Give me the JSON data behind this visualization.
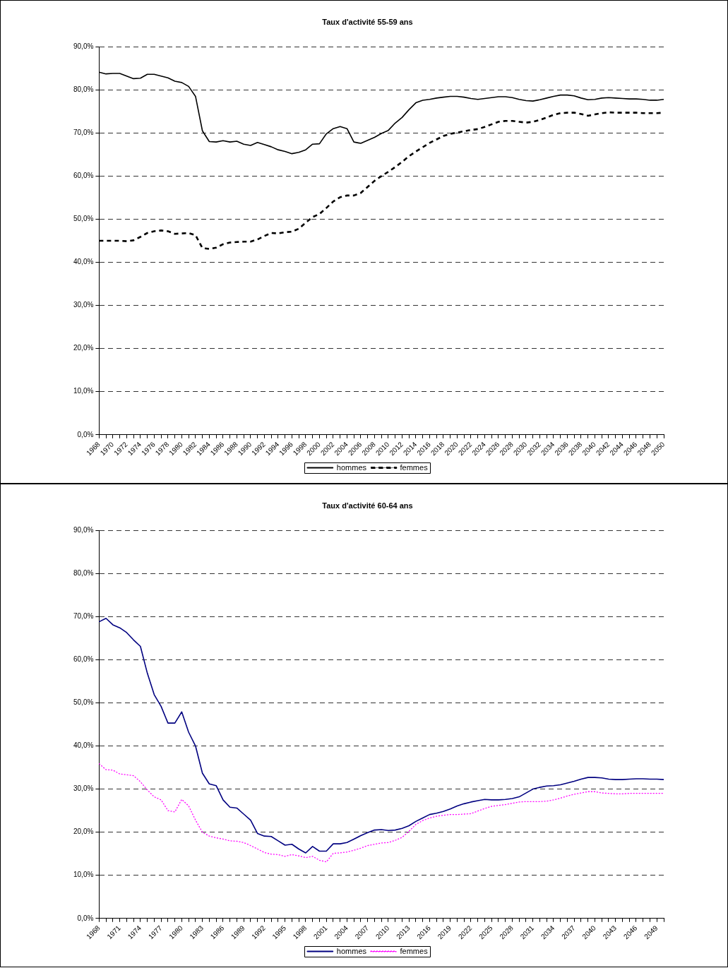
{
  "chart_data": [
    {
      "type": "line",
      "title": "Taux d'activité 55-59 ans",
      "categories": [
        "1968",
        null,
        "1970",
        null,
        "1972",
        null,
        "1974",
        null,
        "1976",
        null,
        "1978",
        null,
        "1980",
        null,
        "1982",
        null,
        "1984",
        null,
        "1986",
        null,
        "1988",
        null,
        "1990",
        null,
        "1992",
        null,
        "1994",
        null,
        "1996",
        null,
        "1998",
        null,
        "2000",
        null,
        "2002",
        null,
        "2004",
        null,
        "2006",
        null,
        "2008",
        null,
        "2010",
        null,
        "2012",
        null,
        "2014",
        null,
        "2016",
        null,
        "2018",
        null,
        "2020",
        null,
        "2022",
        null,
        "2024",
        null,
        "2026",
        null,
        "2028",
        null,
        "2030",
        null,
        "2032",
        null,
        "2034",
        null,
        "2036",
        null,
        "2038",
        null,
        "2040",
        null,
        "2042",
        null,
        "2044",
        null,
        "2046",
        null,
        "2048",
        null,
        "2050"
      ],
      "series": [
        {
          "name": "hommes",
          "color": "#000000",
          "line_style": "solid",
          "values": [
            84.1,
            83.7,
            83.8,
            83.8,
            83.2,
            82.6,
            82.7,
            83.6,
            83.6,
            83.2,
            82.8,
            82.0,
            81.7,
            80.8,
            78.5,
            70.5,
            68.0,
            67.9,
            68.2,
            67.9,
            68.1,
            67.4,
            67.1,
            67.8,
            67.3,
            66.8,
            66.1,
            65.7,
            65.2,
            65.5,
            66.1,
            67.4,
            67.5,
            69.8,
            71.0,
            71.5,
            71.0,
            67.9,
            67.6,
            68.3,
            69.0,
            69.9,
            70.6,
            72.3,
            73.6,
            75.4,
            77.0,
            77.6,
            77.8,
            78.1,
            78.3,
            78.5,
            78.5,
            78.3,
            78.0,
            77.8,
            78.0,
            78.2,
            78.4,
            78.4,
            78.2,
            77.8,
            77.5,
            77.4,
            77.7,
            78.1,
            78.5,
            78.8,
            78.8,
            78.6,
            78.1,
            77.7,
            77.8,
            78.1,
            78.2,
            78.1,
            78.0,
            77.9,
            77.9,
            77.8,
            77.6,
            77.6,
            77.8
          ]
        },
        {
          "name": "femmes",
          "color": "#000000",
          "line_style": "dashed",
          "values": [
            45.0,
            45.0,
            45.0,
            45.0,
            44.9,
            45.1,
            45.9,
            46.8,
            47.2,
            47.4,
            47.2,
            46.6,
            46.7,
            46.8,
            46.3,
            43.3,
            43.1,
            43.4,
            44.2,
            44.6,
            44.7,
            44.8,
            44.8,
            45.3,
            46.1,
            46.8,
            46.7,
            47.0,
            47.1,
            47.8,
            49.2,
            50.5,
            51.2,
            52.6,
            54.1,
            55.1,
            55.5,
            55.5,
            56.1,
            57.5,
            58.9,
            60.0,
            61.0,
            62.1,
            63.3,
            64.6,
            65.7,
            66.7,
            67.7,
            68.5,
            69.3,
            69.8,
            70.1,
            70.4,
            70.7,
            70.9,
            71.4,
            72.0,
            72.6,
            72.8,
            72.8,
            72.6,
            72.4,
            72.6,
            73.0,
            73.6,
            74.2,
            74.6,
            74.7,
            74.7,
            74.4,
            74.0,
            74.3,
            74.6,
            74.8,
            74.7,
            74.7,
            74.7,
            74.7,
            74.6,
            74.6,
            74.6,
            74.7
          ]
        }
      ],
      "ylim": [
        0,
        90
      ],
      "yticks": [
        {
          "value": 0,
          "label": "0,0%"
        },
        {
          "value": 10,
          "label": "10,0%"
        },
        {
          "value": 20,
          "label": "20,0%"
        },
        {
          "value": 30,
          "label": "30,0%"
        },
        {
          "value": 40,
          "label": "40,0%"
        },
        {
          "value": 50,
          "label": "50,0%"
        },
        {
          "value": 60,
          "label": "60,0%"
        },
        {
          "value": 70,
          "label": "70,0%"
        },
        {
          "value": 80,
          "label": "80,0%"
        },
        {
          "value": 90,
          "label": "90,0%"
        }
      ],
      "grid": "y",
      "legend": "bottom",
      "marker": "none"
    },
    {
      "type": "line",
      "title": "Taux d'activité 60-64 ans",
      "categories": [
        "1968",
        null,
        null,
        "1971",
        null,
        null,
        "1974",
        null,
        null,
        "1977",
        null,
        null,
        "1980",
        null,
        null,
        "1983",
        null,
        null,
        "1986",
        null,
        null,
        "1989",
        null,
        null,
        "1992",
        null,
        null,
        "1995",
        null,
        null,
        "1998",
        null,
        null,
        "2001",
        null,
        null,
        "2004",
        null,
        null,
        "2007",
        null,
        null,
        "2010",
        null,
        null,
        "2013",
        null,
        null,
        "2016",
        null,
        null,
        "2019",
        null,
        null,
        "2022",
        null,
        null,
        "2025",
        null,
        null,
        "2028",
        null,
        null,
        "2031",
        null,
        null,
        "2034",
        null,
        null,
        "2037",
        null,
        null,
        "2040",
        null,
        null,
        "2043",
        null,
        null,
        "2046",
        null,
        null,
        "2049",
        null
      ],
      "series": [
        {
          "name": "hommes",
          "color": "#000080",
          "line_style": "solid",
          "values": [
            68.8,
            69.6,
            68.1,
            67.4,
            66.3,
            64.6,
            63.1,
            56.9,
            51.9,
            49.2,
            45.3,
            45.3,
            47.9,
            43.2,
            40.0,
            33.7,
            31.2,
            30.8,
            27.5,
            25.8,
            25.6,
            24.2,
            22.8,
            19.7,
            19.1,
            19.0,
            18.0,
            17.0,
            17.2,
            16.1,
            15.2,
            16.7,
            15.6,
            15.6,
            17.3,
            17.3,
            17.6,
            18.4,
            19.2,
            19.9,
            20.5,
            20.6,
            20.4,
            20.5,
            20.9,
            21.5,
            22.5,
            23.3,
            24.1,
            24.4,
            24.8,
            25.4,
            26.1,
            26.6,
            27.0,
            27.3,
            27.6,
            27.5,
            27.5,
            27.6,
            27.8,
            28.2,
            29.1,
            30.0,
            30.4,
            30.7,
            30.8,
            31.0,
            31.4,
            31.8,
            32.3,
            32.7,
            32.7,
            32.6,
            32.3,
            32.2,
            32.2,
            32.3,
            32.4,
            32.4,
            32.3,
            32.3,
            32.2
          ]
        },
        {
          "name": "femmes",
          "color": "#ff00ff",
          "line_style": "dotted",
          "values": [
            35.9,
            34.5,
            34.4,
            33.5,
            33.3,
            33.1,
            31.7,
            29.8,
            28.2,
            27.5,
            25.0,
            24.7,
            27.6,
            26.1,
            22.8,
            20.0,
            19.1,
            18.7,
            18.4,
            18.0,
            17.9,
            17.6,
            16.9,
            16.1,
            15.3,
            14.9,
            14.8,
            14.4,
            14.8,
            14.5,
            14.1,
            14.4,
            13.5,
            13.1,
            15.1,
            15.2,
            15.4,
            15.8,
            16.3,
            16.9,
            17.2,
            17.5,
            17.6,
            18.1,
            18.8,
            20.2,
            21.8,
            22.7,
            23.3,
            23.7,
            23.9,
            24.1,
            24.1,
            24.2,
            24.3,
            24.9,
            25.5,
            26.0,
            26.2,
            26.4,
            26.7,
            27.0,
            27.1,
            27.1,
            27.1,
            27.2,
            27.5,
            27.9,
            28.4,
            28.8,
            29.1,
            29.4,
            29.4,
            29.1,
            29.0,
            28.9,
            28.9,
            29.0,
            29.0,
            29.0,
            29.0,
            29.0,
            29.0
          ]
        }
      ],
      "ylim": [
        0,
        90
      ],
      "yticks": [
        {
          "value": 0,
          "label": "0,0%"
        },
        {
          "value": 10,
          "label": "10,0%"
        },
        {
          "value": 20,
          "label": "20,0%"
        },
        {
          "value": 30,
          "label": "30,0%"
        },
        {
          "value": 40,
          "label": "40,0%"
        },
        {
          "value": 50,
          "label": "50,0%"
        },
        {
          "value": 60,
          "label": "60,0%"
        },
        {
          "value": 70,
          "label": "70,0%"
        },
        {
          "value": 80,
          "label": "80,0%"
        },
        {
          "value": 90,
          "label": "90,0%"
        }
      ],
      "grid": "y",
      "legend": "bottom",
      "marker": "none"
    }
  ]
}
